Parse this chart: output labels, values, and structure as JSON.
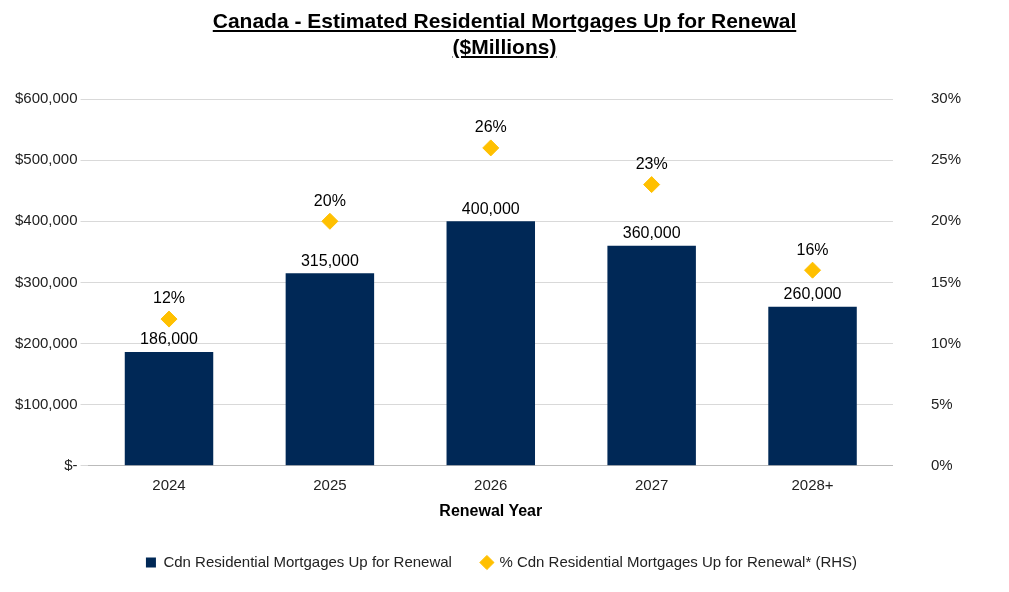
{
  "chart_data": {
    "type": "bar",
    "title": "Canada - Estimated Residential Mortgages Up for Renewal\n($Millions)",
    "xlabel": "Renewal Year",
    "categories": [
      "2024",
      "2025",
      "2026",
      "2027",
      "2028+"
    ],
    "series": [
      {
        "name": "Cdn Residential Mortgages Up for Renewal",
        "color": "#002856",
        "values": [
          186000,
          315000,
          400000,
          360000,
          260000
        ],
        "value_labels": [
          "186,000",
          "315,000",
          "400,000",
          "360,000",
          "260,000"
        ]
      },
      {
        "name": "% Cdn Residential Mortgages Up for Renewal* (RHS)",
        "type": "scatter",
        "axis": "y2",
        "marker": "diamond",
        "color": "#ffc000",
        "values": [
          12,
          20,
          26,
          23,
          16
        ],
        "value_labels": [
          "12%",
          "20%",
          "26%",
          "23%",
          "16%"
        ]
      }
    ],
    "ylim": [
      0,
      600000
    ],
    "yticks": [
      {
        "value": 0,
        "label": "$-"
      },
      {
        "value": 100000,
        "label": "$100,000"
      },
      {
        "value": 200000,
        "label": "$200,000"
      },
      {
        "value": 300000,
        "label": "$300,000"
      },
      {
        "value": 400000,
        "label": "$400,000"
      },
      {
        "value": 500000,
        "label": "$500,000"
      },
      {
        "value": 600000,
        "label": "$600,000"
      }
    ],
    "y2lim": [
      0,
      30
    ],
    "y2ticks": [
      {
        "value": 0,
        "label": "0%"
      },
      {
        "value": 5,
        "label": "5%"
      },
      {
        "value": 10,
        "label": "10%"
      },
      {
        "value": 15,
        "label": "15%"
      },
      {
        "value": 20,
        "label": "20%"
      },
      {
        "value": 25,
        "label": "25%"
      },
      {
        "value": 30,
        "label": "30%"
      }
    ],
    "grid": "y",
    "legend": "bottom"
  }
}
